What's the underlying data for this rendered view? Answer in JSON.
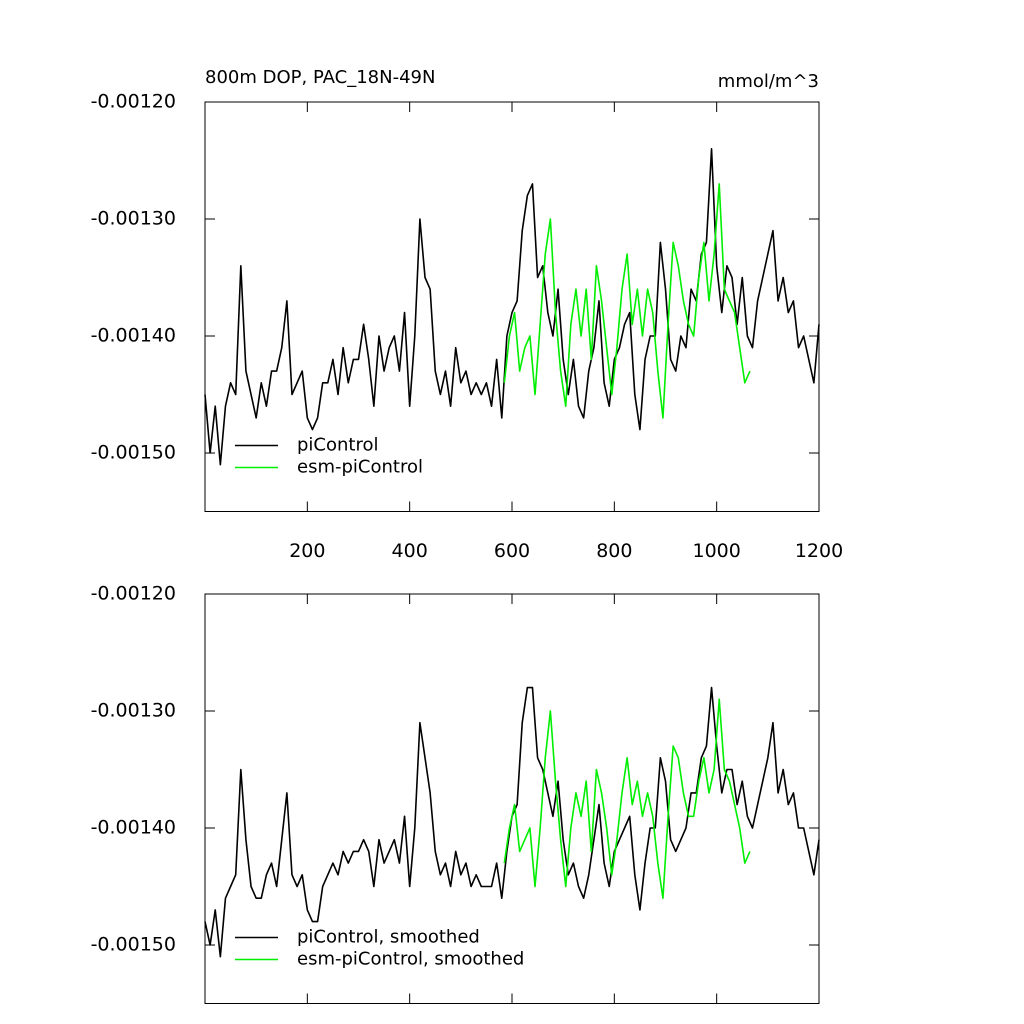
{
  "chart_data": [
    {
      "type": "line",
      "title": "800m DOP, PAC_18N-49N",
      "units_label": "mmol/m^3",
      "xlim": [
        0,
        1200
      ],
      "xticks": [
        200,
        400,
        600,
        800,
        1000,
        1200
      ],
      "ylim": [
        -0.00155,
        -0.0012
      ],
      "yticks": [
        {
          "value": -0.0012,
          "label": "-0.00120"
        },
        {
          "value": -0.0013,
          "label": "-0.00130"
        },
        {
          "value": -0.0014,
          "label": "-0.00140"
        },
        {
          "value": -0.0015,
          "label": "-0.00150"
        }
      ],
      "legend": "lower left",
      "series": [
        {
          "name": "piControl",
          "color": "#000000",
          "x": [
            0,
            10,
            20,
            30,
            40,
            50,
            60,
            70,
            80,
            90,
            100,
            110,
            120,
            130,
            140,
            150,
            160,
            170,
            180,
            190,
            200,
            210,
            220,
            230,
            240,
            250,
            260,
            270,
            280,
            290,
            300,
            310,
            320,
            330,
            340,
            350,
            360,
            370,
            380,
            390,
            400,
            410,
            420,
            430,
            440,
            450,
            460,
            470,
            480,
            490,
            500,
            510,
            520,
            530,
            540,
            550,
            560,
            570,
            580,
            590,
            600,
            610,
            620,
            630,
            640,
            650,
            660,
            670,
            680,
            690,
            700,
            710,
            720,
            730,
            740,
            750,
            760,
            770,
            780,
            790,
            800,
            810,
            820,
            830,
            840,
            850,
            860,
            870,
            880,
            890,
            900,
            910,
            920,
            930,
            940,
            950,
            960,
            970,
            980,
            990,
            1000,
            1010,
            1020,
            1030,
            1040,
            1050,
            1060,
            1070,
            1080,
            1090,
            1100,
            1110,
            1120,
            1130,
            1140,
            1150,
            1160,
            1170,
            1180,
            1190,
            1200
          ],
          "values": [
            -0.00145,
            -0.0015,
            -0.00146,
            -0.00151,
            -0.00146,
            -0.00144,
            -0.00145,
            -0.00134,
            -0.00143,
            -0.00145,
            -0.00147,
            -0.00144,
            -0.00146,
            -0.00143,
            -0.00143,
            -0.00141,
            -0.00137,
            -0.00145,
            -0.00144,
            -0.00143,
            -0.00147,
            -0.00148,
            -0.00147,
            -0.00144,
            -0.00144,
            -0.00142,
            -0.00145,
            -0.00141,
            -0.00144,
            -0.00142,
            -0.00142,
            -0.00139,
            -0.00142,
            -0.00146,
            -0.0014,
            -0.00143,
            -0.00141,
            -0.0014,
            -0.00143,
            -0.00138,
            -0.00146,
            -0.0014,
            -0.0013,
            -0.00135,
            -0.00136,
            -0.00143,
            -0.00145,
            -0.00143,
            -0.00146,
            -0.00141,
            -0.00144,
            -0.00143,
            -0.00145,
            -0.00144,
            -0.00145,
            -0.00144,
            -0.00146,
            -0.00142,
            -0.00147,
            -0.0014,
            -0.00138,
            -0.00137,
            -0.00131,
            -0.00128,
            -0.00127,
            -0.00135,
            -0.00134,
            -0.00138,
            -0.0014,
            -0.00136,
            -0.00142,
            -0.00145,
            -0.00142,
            -0.00146,
            -0.00147,
            -0.00143,
            -0.00141,
            -0.00137,
            -0.00144,
            -0.00146,
            -0.00142,
            -0.00141,
            -0.00139,
            -0.00138,
            -0.00145,
            -0.00148,
            -0.00142,
            -0.0014,
            -0.0014,
            -0.00132,
            -0.00136,
            -0.00142,
            -0.00143,
            -0.0014,
            -0.00141,
            -0.00136,
            -0.00137,
            -0.00133,
            -0.00132,
            -0.00124,
            -0.00134,
            -0.00138,
            -0.00134,
            -0.00135,
            -0.00139,
            -0.00135,
            -0.0014,
            -0.00141,
            -0.00137,
            -0.00135,
            -0.00133,
            -0.00131,
            -0.00137,
            -0.00135,
            -0.00138,
            -0.00137,
            -0.00141,
            -0.0014,
            -0.00142,
            -0.00144,
            -0.00139
          ]
        },
        {
          "name": "esm-piControl",
          "color": "#00ee00",
          "x": [
            585,
            595,
            605,
            615,
            625,
            635,
            645,
            655,
            665,
            675,
            685,
            695,
            705,
            715,
            725,
            735,
            745,
            755,
            765,
            775,
            785,
            795,
            805,
            815,
            825,
            835,
            845,
            855,
            865,
            875,
            885,
            895,
            905,
            915,
            925,
            935,
            945,
            955,
            965,
            975,
            985,
            995,
            1005,
            1015,
            1025,
            1035,
            1045,
            1055,
            1065
          ],
          "values": [
            -0.00144,
            -0.0014,
            -0.00138,
            -0.00143,
            -0.00141,
            -0.0014,
            -0.00145,
            -0.00139,
            -0.00133,
            -0.0013,
            -0.00138,
            -0.00143,
            -0.00146,
            -0.00139,
            -0.00136,
            -0.0014,
            -0.00136,
            -0.00142,
            -0.00134,
            -0.00137,
            -0.00141,
            -0.00145,
            -0.00141,
            -0.00136,
            -0.00133,
            -0.00139,
            -0.00136,
            -0.0014,
            -0.00136,
            -0.00138,
            -0.00143,
            -0.00147,
            -0.00139,
            -0.00132,
            -0.00134,
            -0.00137,
            -0.00139,
            -0.0014,
            -0.00135,
            -0.00132,
            -0.00137,
            -0.00133,
            -0.00127,
            -0.00136,
            -0.00137,
            -0.00138,
            -0.00141,
            -0.00144,
            -0.00143
          ]
        }
      ]
    },
    {
      "type": "line",
      "xlim": [
        0,
        1200
      ],
      "ylim": [
        -0.00155,
        -0.0012
      ],
      "yticks": [
        {
          "value": -0.0012,
          "label": "-0.00120"
        },
        {
          "value": -0.0013,
          "label": "-0.00130"
        },
        {
          "value": -0.0014,
          "label": "-0.00140"
        },
        {
          "value": -0.0015,
          "label": "-0.00150"
        }
      ],
      "legend": "lower left",
      "series": [
        {
          "name": "piControl, smoothed",
          "color": "#000000",
          "x": [
            0,
            10,
            20,
            30,
            40,
            50,
            60,
            70,
            80,
            90,
            100,
            110,
            120,
            130,
            140,
            150,
            160,
            170,
            180,
            190,
            200,
            210,
            220,
            230,
            240,
            250,
            260,
            270,
            280,
            290,
            300,
            310,
            320,
            330,
            340,
            350,
            360,
            370,
            380,
            390,
            400,
            410,
            420,
            430,
            440,
            450,
            460,
            470,
            480,
            490,
            500,
            510,
            520,
            530,
            540,
            550,
            560,
            570,
            580,
            590,
            600,
            610,
            620,
            630,
            640,
            650,
            660,
            670,
            680,
            690,
            700,
            710,
            720,
            730,
            740,
            750,
            760,
            770,
            780,
            790,
            800,
            810,
            820,
            830,
            840,
            850,
            860,
            870,
            880,
            890,
            900,
            910,
            920,
            930,
            940,
            950,
            960,
            970,
            980,
            990,
            1000,
            1010,
            1020,
            1030,
            1040,
            1050,
            1060,
            1070,
            1080,
            1090,
            1100,
            1110,
            1120,
            1130,
            1140,
            1150,
            1160,
            1170,
            1180,
            1190,
            1200
          ],
          "values": [
            -0.00148,
            -0.0015,
            -0.00147,
            -0.00151,
            -0.00146,
            -0.00145,
            -0.00144,
            -0.00135,
            -0.00141,
            -0.00145,
            -0.00146,
            -0.00146,
            -0.00144,
            -0.00143,
            -0.00145,
            -0.00141,
            -0.00137,
            -0.00144,
            -0.00145,
            -0.00144,
            -0.00147,
            -0.00148,
            -0.00148,
            -0.00145,
            -0.00144,
            -0.00143,
            -0.00144,
            -0.00142,
            -0.00143,
            -0.00142,
            -0.00142,
            -0.00141,
            -0.00142,
            -0.00145,
            -0.00141,
            -0.00143,
            -0.00142,
            -0.00141,
            -0.00143,
            -0.00139,
            -0.00145,
            -0.0014,
            -0.00131,
            -0.00134,
            -0.00137,
            -0.00142,
            -0.00144,
            -0.00143,
            -0.00145,
            -0.00142,
            -0.00144,
            -0.00143,
            -0.00145,
            -0.00144,
            -0.00145,
            -0.00145,
            -0.00145,
            -0.00143,
            -0.00146,
            -0.00142,
            -0.00139,
            -0.00138,
            -0.00131,
            -0.00128,
            -0.00128,
            -0.00134,
            -0.00135,
            -0.00137,
            -0.00139,
            -0.00136,
            -0.00141,
            -0.00144,
            -0.00143,
            -0.00145,
            -0.00146,
            -0.00144,
            -0.00141,
            -0.00138,
            -0.00143,
            -0.00145,
            -0.00142,
            -0.00141,
            -0.0014,
            -0.00139,
            -0.00144,
            -0.00147,
            -0.00143,
            -0.0014,
            -0.0014,
            -0.00134,
            -0.00136,
            -0.00141,
            -0.00142,
            -0.00141,
            -0.0014,
            -0.00137,
            -0.00137,
            -0.00134,
            -0.00133,
            -0.00128,
            -0.00133,
            -0.00137,
            -0.00135,
            -0.00135,
            -0.00138,
            -0.00136,
            -0.00139,
            -0.0014,
            -0.00138,
            -0.00136,
            -0.00134,
            -0.00131,
            -0.00137,
            -0.00135,
            -0.00138,
            -0.00137,
            -0.0014,
            -0.0014,
            -0.00142,
            -0.00144,
            -0.00141
          ]
        },
        {
          "name": "esm-piControl, smoothed",
          "color": "#00ee00",
          "x": [
            585,
            595,
            605,
            615,
            625,
            635,
            645,
            655,
            665,
            675,
            685,
            695,
            705,
            715,
            725,
            735,
            745,
            755,
            765,
            775,
            785,
            795,
            805,
            815,
            825,
            835,
            845,
            855,
            865,
            875,
            885,
            895,
            905,
            915,
            925,
            935,
            945,
            955,
            965,
            975,
            985,
            995,
            1005,
            1015,
            1025,
            1035,
            1045,
            1055,
            1065
          ],
          "values": [
            -0.00143,
            -0.0014,
            -0.00138,
            -0.00142,
            -0.00141,
            -0.0014,
            -0.00145,
            -0.0014,
            -0.00134,
            -0.0013,
            -0.00136,
            -0.00141,
            -0.00145,
            -0.0014,
            -0.00137,
            -0.00139,
            -0.00136,
            -0.00142,
            -0.00135,
            -0.00137,
            -0.0014,
            -0.00144,
            -0.00141,
            -0.00137,
            -0.00134,
            -0.00138,
            -0.00136,
            -0.00139,
            -0.00137,
            -0.00139,
            -0.00143,
            -0.00146,
            -0.00139,
            -0.00133,
            -0.00134,
            -0.00137,
            -0.00139,
            -0.00139,
            -0.00136,
            -0.00134,
            -0.00137,
            -0.00135,
            -0.00129,
            -0.00135,
            -0.00136,
            -0.00138,
            -0.0014,
            -0.00143,
            -0.00142
          ]
        }
      ]
    }
  ]
}
